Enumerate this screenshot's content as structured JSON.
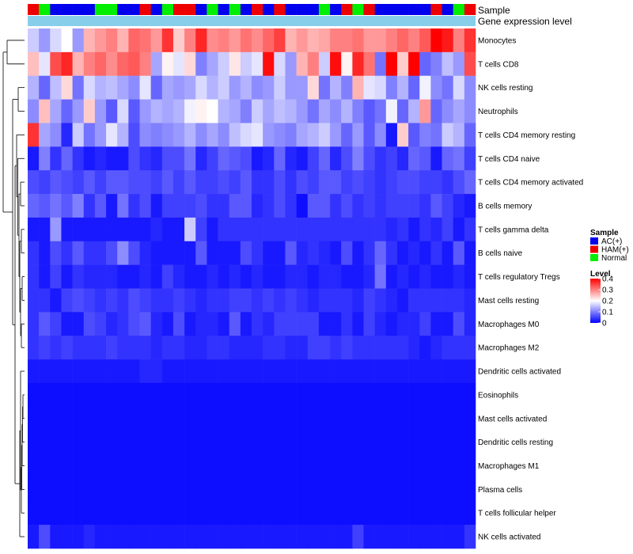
{
  "chart_data": {
    "type": "heatmap",
    "title": "",
    "annotation_labels": [
      "Sample",
      "Gene expression level"
    ],
    "column_annotation": {
      "groups": [
        "AC(+)",
        "HAM(+)",
        "Normal"
      ],
      "colors": {
        "AC(+)": "#0000ee",
        "HAM(+)": "#ee0000",
        "Normal": "#00ee00"
      },
      "sample": [
        "HAM(+)",
        "Normal",
        "AC(+)",
        "AC(+)",
        "AC(+)",
        "AC(+)",
        "Normal",
        "Normal",
        "AC(+)",
        "AC(+)",
        "HAM(+)",
        "AC(+)",
        "Normal",
        "HAM(+)",
        "HAM(+)",
        "AC(+)",
        "Normal",
        "AC(+)",
        "Normal",
        "AC(+)",
        "HAM(+)",
        "AC(+)",
        "HAM(+)",
        "AC(+)",
        "AC(+)",
        "AC(+)",
        "Normal",
        "AC(+)",
        "HAM(+)",
        "Normal",
        "HAM(+)",
        "AC(+)",
        "AC(+)",
        "AC(+)",
        "AC(+)",
        "AC(+)",
        "HAM(+)",
        "AC(+)",
        "Normal",
        "HAM(+)"
      ],
      "gene_expression_color": "#87ceeb"
    },
    "rows": [
      "Monocytes",
      "T cells CD8",
      "NK cells resting",
      "Neutrophils",
      "T cells CD4 memory resting",
      "T cells CD4 naive",
      "T cells CD4 memory activated",
      "B cells memory",
      "T cells gamma delta",
      "B cells naive",
      "T cells regulatory  Tregs",
      "Mast cells resting",
      "Macrophages M0",
      "Macrophages M2",
      "Dendritic cells activated",
      "Eosinophils",
      "Mast cells activated",
      "Dendritic cells resting",
      "Macrophages M1",
      "Plasma cells",
      "T cells follicular helper",
      "NK cells activated"
    ],
    "values": [
      [
        0.16,
        0.12,
        0.17,
        0.2,
        0.12,
        0.26,
        0.28,
        0.3,
        0.26,
        0.32,
        0.31,
        0.28,
        0.36,
        0.24,
        0.3,
        0.37,
        0.29,
        0.3,
        0.28,
        0.31,
        0.29,
        0.32,
        0.35,
        0.26,
        0.28,
        0.26,
        0.27,
        0.3,
        0.3,
        0.31,
        0.28,
        0.28,
        0.3,
        0.32,
        0.3,
        0.33,
        0.4,
        0.38,
        0.3,
        0.36
      ],
      [
        0.25,
        0.18,
        0.34,
        0.37,
        0.26,
        0.3,
        0.32,
        0.29,
        0.32,
        0.33,
        0.3,
        0.13,
        0.21,
        0.18,
        0.23,
        0.1,
        0.13,
        0.16,
        0.22,
        0.16,
        0.18,
        0.39,
        0.17,
        0.12,
        0.26,
        0.3,
        0.16,
        0.39,
        0.21,
        0.37,
        0.31,
        0.09,
        0.4,
        0.24,
        0.4,
        0.08,
        0.1,
        0.15,
        0.12,
        0.34
      ],
      [
        0.14,
        0.08,
        0.15,
        0.23,
        0.09,
        0.17,
        0.14,
        0.15,
        0.13,
        0.11,
        0.18,
        0.08,
        0.13,
        0.12,
        0.13,
        0.17,
        0.14,
        0.16,
        0.12,
        0.14,
        0.11,
        0.12,
        0.16,
        0.12,
        0.12,
        0.23,
        0.09,
        0.14,
        0.1,
        0.26,
        0.18,
        0.17,
        0.1,
        0.14,
        0.08,
        0.19,
        0.11,
        0.09,
        0.17,
        0.11
      ],
      [
        0.11,
        0.25,
        0.13,
        0.08,
        0.12,
        0.24,
        0.12,
        0.07,
        0.17,
        0.07,
        0.12,
        0.14,
        0.13,
        0.14,
        0.19,
        0.21,
        0.2,
        0.14,
        0.13,
        0.1,
        0.16,
        0.13,
        0.15,
        0.14,
        0.12,
        0.09,
        0.13,
        0.11,
        0.14,
        0.1,
        0.07,
        0.09,
        0.19,
        0.08,
        0.14,
        0.28,
        0.08,
        0.11,
        0.13,
        0.11
      ],
      [
        0.36,
        0.13,
        0.11,
        0.03,
        0.16,
        0.09,
        0.12,
        0.18,
        0.14,
        0.06,
        0.11,
        0.1,
        0.11,
        0.12,
        0.14,
        0.11,
        0.13,
        0.11,
        0.15,
        0.17,
        0.18,
        0.12,
        0.11,
        0.1,
        0.13,
        0.14,
        0.16,
        0.12,
        0.08,
        0.12,
        0.07,
        0.11,
        0.02,
        0.24,
        0.07,
        0.1,
        0.09,
        0.16,
        0.14,
        0.08
      ],
      [
        0.02,
        0.1,
        0.04,
        0.08,
        0.04,
        0.02,
        0.03,
        0.02,
        0.02,
        0.06,
        0.04,
        0.03,
        0.06,
        0.06,
        0.09,
        0.03,
        0.05,
        0.08,
        0.07,
        0.06,
        0.02,
        0.03,
        0.08,
        0.03,
        0.02,
        0.05,
        0.08,
        0.03,
        0.06,
        0.1,
        0.06,
        0.04,
        0.05,
        0.03,
        0.08,
        0.07,
        0.02,
        0.08,
        0.09,
        0.05
      ],
      [
        0.06,
        0.05,
        0.07,
        0.06,
        0.05,
        0.07,
        0.05,
        0.07,
        0.07,
        0.06,
        0.06,
        0.05,
        0.07,
        0.05,
        0.07,
        0.05,
        0.05,
        0.06,
        0.05,
        0.07,
        0.04,
        0.04,
        0.06,
        0.04,
        0.06,
        0.05,
        0.07,
        0.07,
        0.05,
        0.06,
        0.05,
        0.04,
        0.05,
        0.06,
        0.06,
        0.05,
        0.05,
        0.04,
        0.06,
        0.08
      ],
      [
        0.08,
        0.07,
        0.09,
        0.07,
        0.1,
        0.04,
        0.07,
        0.02,
        0.09,
        0.04,
        0.06,
        0.02,
        0.05,
        0.05,
        0.05,
        0.06,
        0.04,
        0.04,
        0.07,
        0.07,
        0.03,
        0.04,
        0.06,
        0.04,
        0.01,
        0.07,
        0.07,
        0.04,
        0.06,
        0.04,
        0.05,
        0.04,
        0.05,
        0.05,
        0.05,
        0.04,
        0.07,
        0.05,
        0.03,
        0.02
      ],
      [
        0.02,
        0.02,
        0.12,
        0.02,
        0.02,
        0.02,
        0.02,
        0.02,
        0.02,
        0.02,
        0.02,
        0.03,
        0.02,
        0.02,
        0.16,
        0.05,
        0.02,
        0.04,
        0.04,
        0.04,
        0.04,
        0.04,
        0.04,
        0.04,
        0.04,
        0.04,
        0.04,
        0.04,
        0.04,
        0.04,
        0.04,
        0.04,
        0.03,
        0.04,
        0.02,
        0.04,
        0.03,
        0.05,
        0.02,
        0.04
      ],
      [
        0.04,
        0.02,
        0.06,
        0.04,
        0.07,
        0.04,
        0.04,
        0.06,
        0.11,
        0.06,
        0.03,
        0.02,
        0.02,
        0.02,
        0.02,
        0.07,
        0.02,
        0.02,
        0.02,
        0.06,
        0.04,
        0.02,
        0.02,
        0.07,
        0.03,
        0.04,
        0.03,
        0.02,
        0.06,
        0.02,
        0.04,
        0.08,
        0.04,
        0.02,
        0.03,
        0.02,
        0.04,
        0.02,
        0.07,
        0.02
      ],
      [
        0.04,
        0.02,
        0.05,
        0.02,
        0.04,
        0.03,
        0.03,
        0.03,
        0.02,
        0.02,
        0.03,
        0.02,
        0.05,
        0.03,
        0.02,
        0.02,
        0.03,
        0.02,
        0.03,
        0.02,
        0.03,
        0.02,
        0.02,
        0.03,
        0.03,
        0.02,
        0.03,
        0.03,
        0.02,
        0.02,
        0.03,
        0.09,
        0.02,
        0.03,
        0.02,
        0.03,
        0.02,
        0.02,
        0.03,
        0.02
      ],
      [
        0.04,
        0.04,
        0.02,
        0.05,
        0.06,
        0.05,
        0.04,
        0.05,
        0.04,
        0.06,
        0.05,
        0.04,
        0.04,
        0.05,
        0.04,
        0.03,
        0.04,
        0.04,
        0.05,
        0.05,
        0.04,
        0.05,
        0.04,
        0.05,
        0.04,
        0.03,
        0.04,
        0.04,
        0.04,
        0.03,
        0.05,
        0.04,
        0.03,
        0.02,
        0.04,
        0.04,
        0.04,
        0.04,
        0.04,
        0.03
      ],
      [
        0.04,
        0.07,
        0.05,
        0.02,
        0.02,
        0.06,
        0.05,
        0.03,
        0.04,
        0.06,
        0.07,
        0.03,
        0.02,
        0.06,
        0.02,
        0.03,
        0.03,
        0.02,
        0.07,
        0.02,
        0.04,
        0.03,
        0.05,
        0.05,
        0.05,
        0.05,
        0.02,
        0.02,
        0.04,
        0.02,
        0.05,
        0.03,
        0.02,
        0.03,
        0.03,
        0.05,
        0.02,
        0.02,
        0.06,
        0.03
      ],
      [
        0.04,
        0.05,
        0.04,
        0.05,
        0.04,
        0.04,
        0.04,
        0.05,
        0.04,
        0.04,
        0.04,
        0.03,
        0.04,
        0.04,
        0.03,
        0.03,
        0.04,
        0.04,
        0.03,
        0.03,
        0.03,
        0.04,
        0.04,
        0.03,
        0.03,
        0.05,
        0.05,
        0.04,
        0.05,
        0.04,
        0.04,
        0.04,
        0.04,
        0.04,
        0.03,
        0.02,
        0.03,
        0.04,
        0.04,
        0.04
      ],
      [
        0.02,
        0.02,
        0.02,
        0.02,
        0.02,
        0.02,
        0.02,
        0.02,
        0.02,
        0.02,
        0.03,
        0.03,
        0.02,
        0.02,
        0.02,
        0.02,
        0.02,
        0.02,
        0.02,
        0.02,
        0.02,
        0.02,
        0.02,
        0.02,
        0.02,
        0.02,
        0.02,
        0.02,
        0.02,
        0.02,
        0.02,
        0.02,
        0.02,
        0.02,
        0.02,
        0.02,
        0.02,
        0.02,
        0.02,
        0.02
      ],
      [
        0.01,
        0.01,
        0.01,
        0.01,
        0.01,
        0.01,
        0.01,
        0.01,
        0.01,
        0.01,
        0.01,
        0.01,
        0.01,
        0.01,
        0.01,
        0.01,
        0.01,
        0.01,
        0.01,
        0.01,
        0.01,
        0.01,
        0.01,
        0.01,
        0.01,
        0.01,
        0.01,
        0.01,
        0.01,
        0.01,
        0.01,
        0.01,
        0.01,
        0.01,
        0.01,
        0.01,
        0.01,
        0.01,
        0.01,
        0.01
      ],
      [
        0.01,
        0.01,
        0.01,
        0.01,
        0.01,
        0.01,
        0.01,
        0.01,
        0.01,
        0.01,
        0.01,
        0.01,
        0.01,
        0.01,
        0.01,
        0.01,
        0.01,
        0.01,
        0.01,
        0.01,
        0.01,
        0.01,
        0.01,
        0.01,
        0.01,
        0.01,
        0.01,
        0.01,
        0.01,
        0.01,
        0.01,
        0.01,
        0.01,
        0.01,
        0.01,
        0.01,
        0.01,
        0.01,
        0.01,
        0.01
      ],
      [
        0.01,
        0.01,
        0.01,
        0.01,
        0.01,
        0.01,
        0.01,
        0.01,
        0.01,
        0.01,
        0.01,
        0.01,
        0.01,
        0.01,
        0.01,
        0.01,
        0.01,
        0.01,
        0.01,
        0.01,
        0.01,
        0.01,
        0.01,
        0.01,
        0.01,
        0.01,
        0.01,
        0.01,
        0.01,
        0.01,
        0.01,
        0.01,
        0.01,
        0.01,
        0.01,
        0.01,
        0.01,
        0.01,
        0.01,
        0.01
      ],
      [
        0.01,
        0.01,
        0.01,
        0.01,
        0.01,
        0.01,
        0.01,
        0.01,
        0.01,
        0.01,
        0.01,
        0.01,
        0.01,
        0.01,
        0.01,
        0.01,
        0.01,
        0.01,
        0.01,
        0.01,
        0.01,
        0.01,
        0.01,
        0.01,
        0.01,
        0.01,
        0.01,
        0.01,
        0.01,
        0.01,
        0.01,
        0.01,
        0.01,
        0.01,
        0.01,
        0.01,
        0.01,
        0.01,
        0.01,
        0.01
      ],
      [
        0.01,
        0.01,
        0.01,
        0.01,
        0.01,
        0.01,
        0.01,
        0.01,
        0.01,
        0.01,
        0.01,
        0.01,
        0.01,
        0.01,
        0.01,
        0.01,
        0.01,
        0.01,
        0.01,
        0.01,
        0.01,
        0.01,
        0.01,
        0.01,
        0.01,
        0.01,
        0.01,
        0.01,
        0.01,
        0.01,
        0.01,
        0.01,
        0.01,
        0.01,
        0.01,
        0.01,
        0.01,
        0.01,
        0.01,
        0.01
      ],
      [
        0.01,
        0.01,
        0.01,
        0.01,
        0.01,
        0.01,
        0.01,
        0.01,
        0.01,
        0.01,
        0.01,
        0.01,
        0.01,
        0.01,
        0.01,
        0.01,
        0.01,
        0.01,
        0.01,
        0.01,
        0.01,
        0.01,
        0.01,
        0.01,
        0.01,
        0.01,
        0.01,
        0.01,
        0.01,
        0.01,
        0.01,
        0.01,
        0.01,
        0.01,
        0.01,
        0.01,
        0.01,
        0.01,
        0.01,
        0.01
      ],
      [
        0.02,
        0.06,
        0.02,
        0.02,
        0.02,
        0.03,
        0.02,
        0.02,
        0.02,
        0.02,
        0.02,
        0.02,
        0.02,
        0.02,
        0.02,
        0.02,
        0.02,
        0.02,
        0.02,
        0.02,
        0.02,
        0.02,
        0.02,
        0.02,
        0.02,
        0.02,
        0.02,
        0.02,
        0.02,
        0.05,
        0.02,
        0.02,
        0.02,
        0.02,
        0.02,
        0.02,
        0.02,
        0.02,
        0.02,
        0.04
      ]
    ],
    "legend": {
      "sample_title": "Sample",
      "level_title": "Level",
      "level_range": [
        0,
        0.4
      ],
      "level_ticks": [
        "0.4",
        "0.3",
        "0.2",
        "0.1",
        "0"
      ],
      "level_tick_values": [
        0.4,
        0.3,
        0.2,
        0.1,
        0
      ],
      "level_colors": {
        "low": "#0000ff",
        "mid": "#ffffff",
        "high": "#ff0000"
      },
      "placement": "right"
    },
    "dendrogram": "row-left"
  }
}
